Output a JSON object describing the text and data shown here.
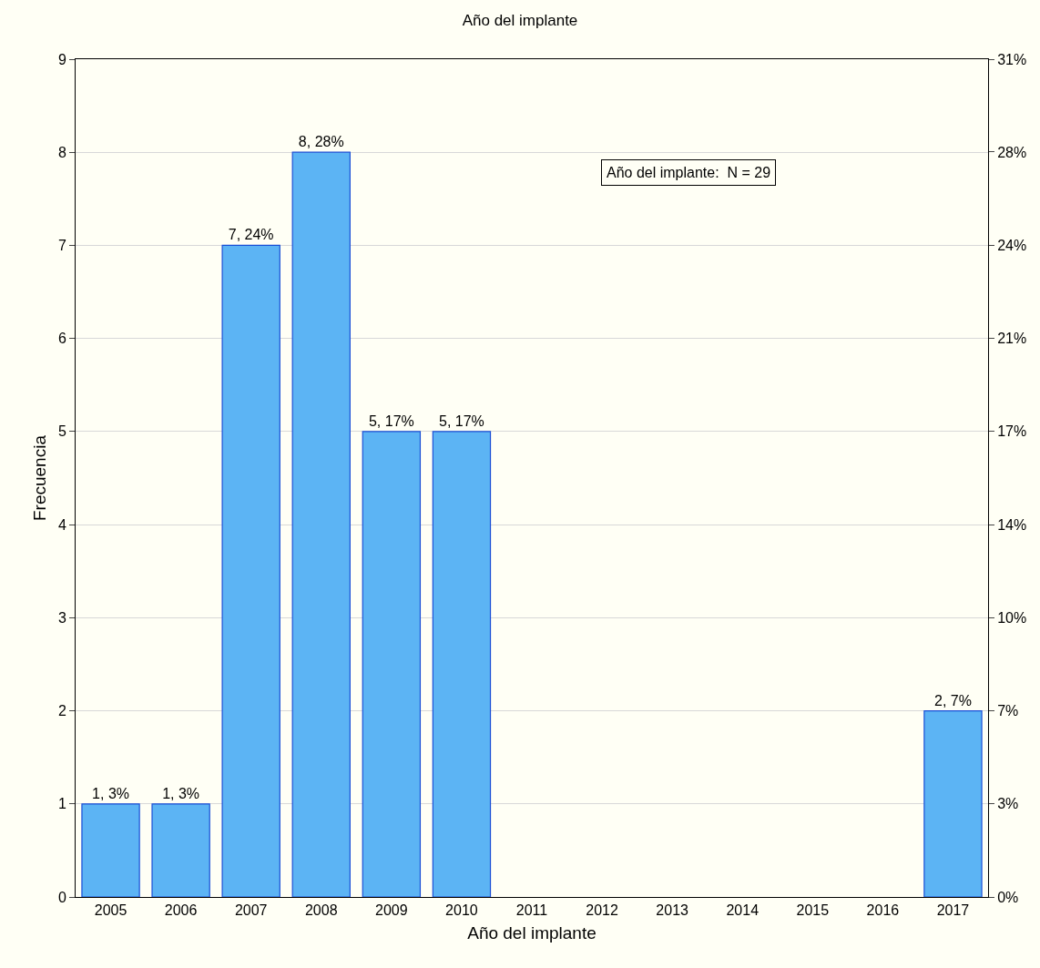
{
  "chart_data": {
    "type": "bar",
    "title": "Año del implante",
    "xlabel": "Año del implante",
    "ylabel": "Frecuencia",
    "categories": [
      "2005",
      "2006",
      "2007",
      "2008",
      "2009",
      "2010",
      "2011",
      "2012",
      "2013",
      "2014",
      "2015",
      "2016",
      "2017"
    ],
    "values": [
      1,
      1,
      7,
      8,
      5,
      5,
      null,
      null,
      null,
      null,
      null,
      null,
      2
    ],
    "value_labels": [
      "1, 3%",
      "1, 3%",
      "7, 24%",
      "8, 28%",
      "5, 17%",
      "5, 17%",
      null,
      null,
      null,
      null,
      null,
      null,
      "2, 7%"
    ],
    "color": "#5cb4f4",
    "ylim": [
      0,
      9
    ],
    "yticks": [
      0,
      1,
      2,
      3,
      4,
      5,
      6,
      7,
      8,
      9
    ],
    "y2lim": [
      0,
      31.03
    ],
    "y2ticks": [
      {
        "value": 0,
        "label": "0%"
      },
      {
        "value": 3.45,
        "label": "3%"
      },
      {
        "value": 6.9,
        "label": "7%"
      },
      {
        "value": 10.34,
        "label": "10%"
      },
      {
        "value": 13.79,
        "label": "14%"
      },
      {
        "value": 17.24,
        "label": "17%"
      },
      {
        "value": 20.69,
        "label": "21%"
      },
      {
        "value": 24.14,
        "label": "24%"
      },
      {
        "value": 27.59,
        "label": "28%"
      },
      {
        "value": 31.03,
        "label": "31%"
      }
    ],
    "grid": "y",
    "annotations": [
      "Año del implante:  N = 29"
    ]
  }
}
